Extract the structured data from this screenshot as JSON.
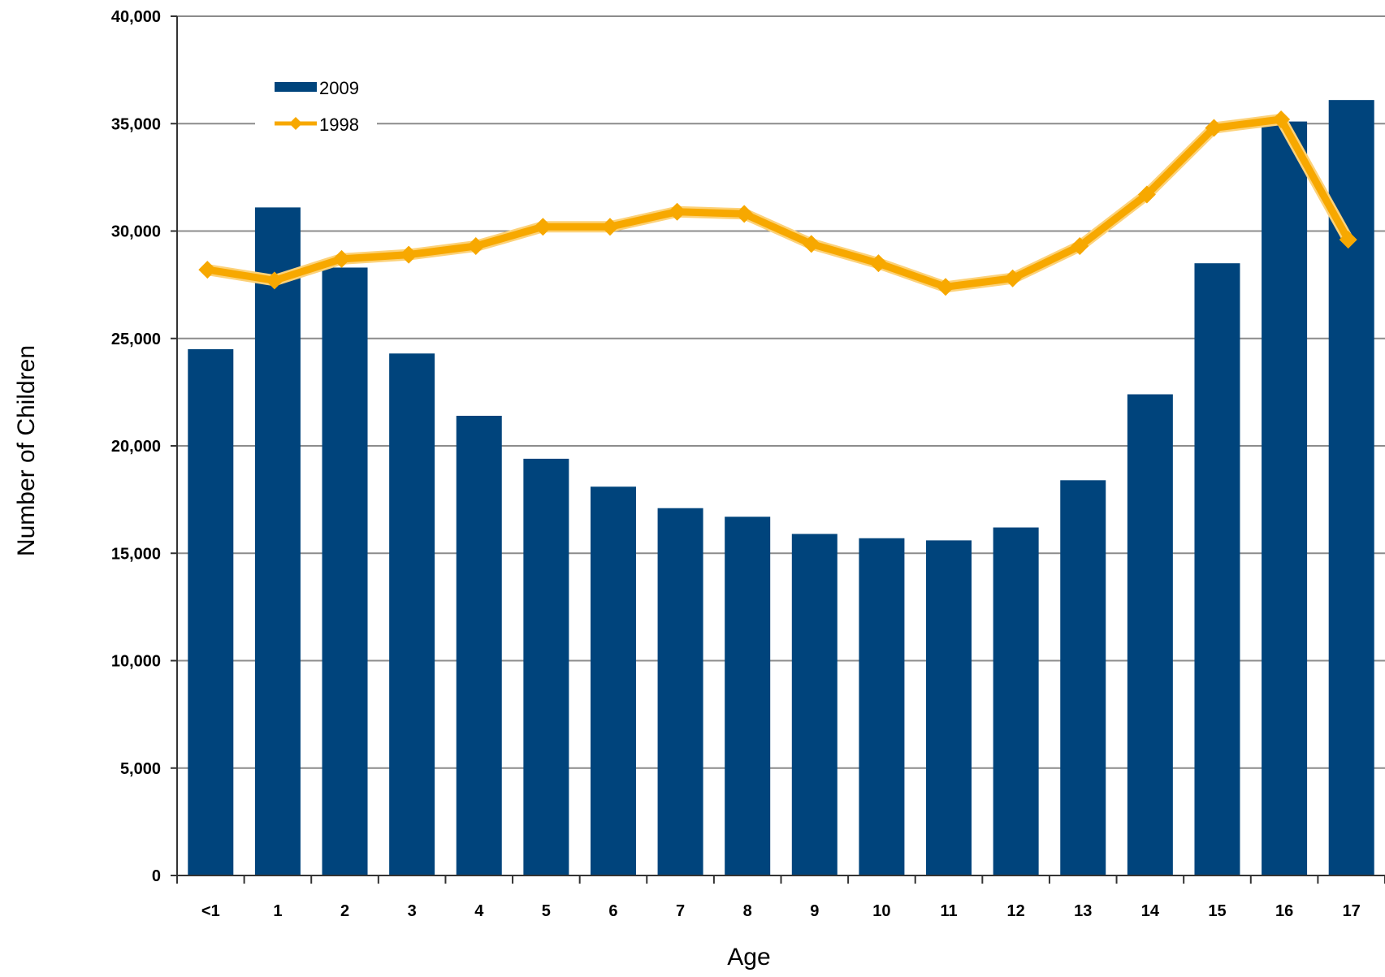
{
  "chart_data": {
    "type": "bar",
    "categories": [
      "<1",
      "1",
      "2",
      "3",
      "4",
      "5",
      "6",
      "7",
      "8",
      "9",
      "10",
      "11",
      "12",
      "13",
      "14",
      "15",
      "16",
      "17"
    ],
    "series": [
      {
        "name": "2009",
        "type": "bar",
        "color": "#00447C",
        "values": [
          24500,
          31100,
          28300,
          24300,
          21400,
          19400,
          18100,
          17100,
          16700,
          15900,
          15700,
          15600,
          16200,
          18400,
          22400,
          28500,
          35100,
          36100
        ]
      },
      {
        "name": "1998",
        "type": "line",
        "color": "#F7A800",
        "values": [
          28200,
          27700,
          28700,
          28900,
          29300,
          30200,
          30200,
          30900,
          30800,
          29400,
          28500,
          27400,
          27800,
          29300,
          31700,
          34800,
          35200,
          29600
        ]
      }
    ],
    "xlabel": "Age",
    "ylabel": "Number of Children",
    "ylim": [
      0,
      40000
    ],
    "yticks": [
      0,
      5000,
      10000,
      15000,
      20000,
      25000,
      30000,
      35000,
      40000
    ],
    "ytick_labels": [
      "0",
      "5,000",
      "10,000",
      "15,000",
      "20,000",
      "25,000",
      "30,000",
      "35,000",
      "40,000"
    ],
    "grid": true,
    "legend_position": "top-left"
  }
}
